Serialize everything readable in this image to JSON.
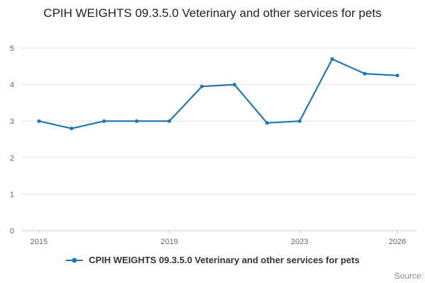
{
  "chart_data": {
    "type": "line",
    "title": "CPIH WEIGHTS 09.3.5.0 Veterinary and other services for pets",
    "x": [
      2015,
      2016,
      2017,
      2018,
      2019,
      2020,
      2021,
      2022,
      2023,
      2024,
      2025,
      2026
    ],
    "series": [
      {
        "name": "CPIH WEIGHTS 09.3.5.0 Veterinary and other services for pets",
        "values": [
          3.0,
          2.8,
          3.0,
          3.0,
          3.0,
          3.95,
          4.0,
          2.95,
          3.0,
          4.7,
          4.3,
          4.25
        ]
      }
    ],
    "ylim": [
      0,
      5
    ],
    "yticks": [
      0,
      1,
      2,
      3,
      4,
      5
    ],
    "xticks_labeled": [
      2015,
      2019,
      2023,
      2026
    ],
    "grid": true,
    "legend_position": "bottom",
    "line_color": "#1f77b4",
    "grid_color": "#e6e6e6",
    "axis_line_color": "#cccccc",
    "axis_text_color": "#666666"
  },
  "footer": {
    "source": "Source:"
  }
}
